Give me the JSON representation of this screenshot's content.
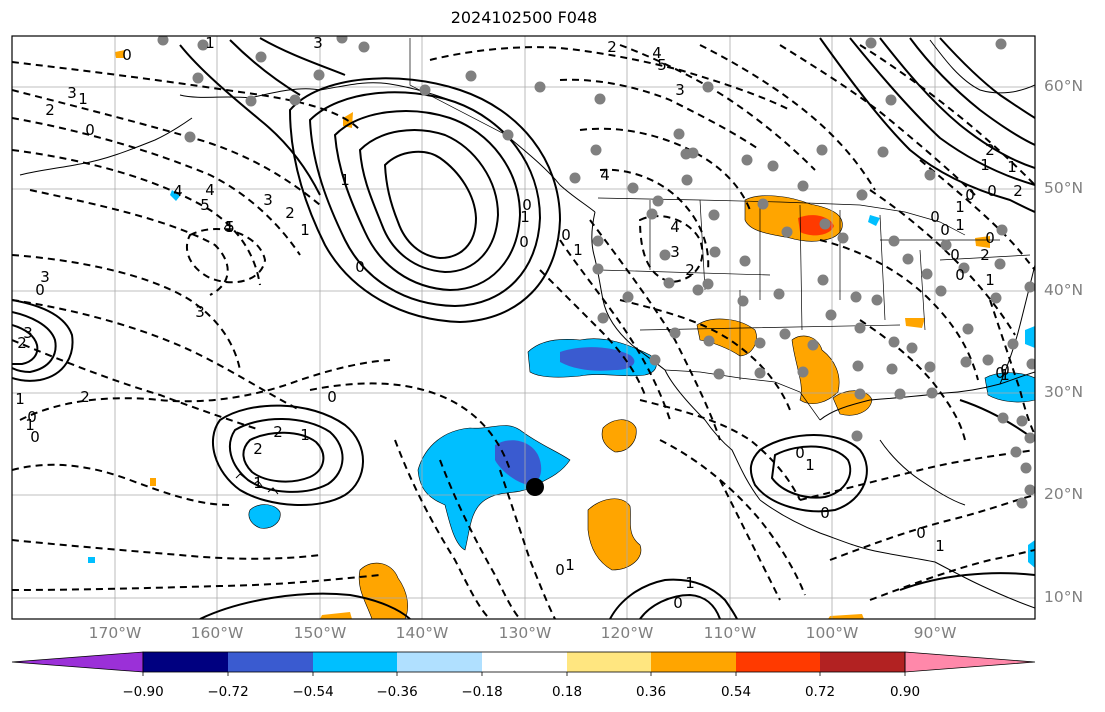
{
  "title": "2024102500 F048",
  "lat_ticks": [
    "60°N",
    "50°N",
    "40°N",
    "30°N",
    "20°N",
    "10°N"
  ],
  "lon_ticks": [
    "170°W",
    "160°W",
    "150°W",
    "140°W",
    "130°W",
    "120°W",
    "110°W",
    "100°W",
    "90°W"
  ],
  "colorbar": {
    "labels": [
      "−0.90",
      "−0.72",
      "−0.54",
      "−0.36",
      "−0.18",
      "0.18",
      "0.36",
      "0.54",
      "0.72",
      "0.90"
    ],
    "colors": [
      "#9b30d8",
      "#000080",
      "#3a5bd0",
      "#00bfff",
      "#b0e0ff",
      "#ffffff",
      "#ffe680",
      "#ffa500",
      "#ff3a00",
      "#b22222",
      "#ff88aa"
    ]
  },
  "contour_labels": [
    "3",
    "0",
    "1",
    "2",
    "4",
    "5",
    "3",
    "4",
    "3",
    "2",
    "1",
    "0",
    "5",
    "4",
    "3",
    "2",
    "1",
    "0",
    "2",
    "1",
    "0",
    "0",
    "1",
    "1",
    "0",
    "0",
    "0",
    "4",
    "3",
    "2",
    "1",
    "0",
    "1",
    "2",
    "2",
    "3",
    "4",
    "5",
    "4",
    "3",
    "3",
    "2",
    "1",
    "0",
    "1",
    "0",
    "1",
    "1",
    "0",
    "0",
    "0",
    "1",
    "1",
    "0",
    "0",
    "1",
    "0",
    "2",
    "1",
    "2",
    "0",
    "0",
    "0",
    "1",
    "0",
    "2",
    "1",
    "1",
    "0",
    "0",
    "0",
    "1"
  ]
}
